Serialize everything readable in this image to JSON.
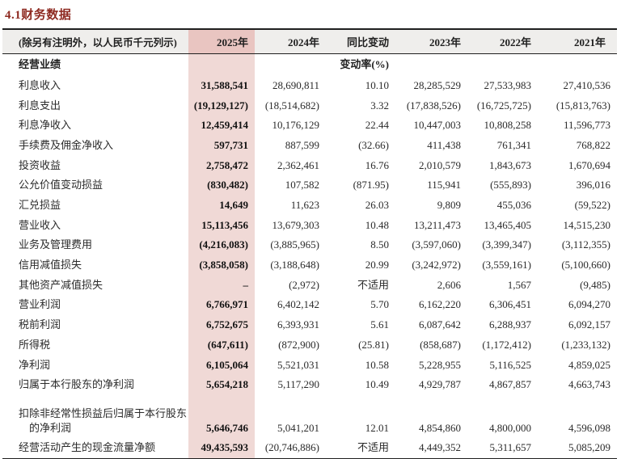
{
  "title": "4.1财务数据",
  "colors": {
    "title_red": "#8e2a21",
    "highlight_header_pink": "#e9c5c1",
    "highlight_column_pink": "#f0d9d6",
    "header_row_gray": "#efeeec",
    "rule_black": "#1f1f1f"
  },
  "table": {
    "note": "(除另有注明外，以人民币千元列示)",
    "columns": [
      "2025年",
      "2024年",
      "同比变动",
      "2023年",
      "2022年",
      "2021年"
    ],
    "section_label": "经营业绩",
    "change_unit_label": "变动率(%)",
    "rows": [
      {
        "label": "利息收入",
        "values": [
          "31,588,541",
          "28,690,811",
          "10.10",
          "28,285,529",
          "27,533,983",
          "27,410,536"
        ]
      },
      {
        "label": "利息支出",
        "values": [
          "(19,129,127)",
          "(18,514,682)",
          "3.32",
          "(17,838,526)",
          "(16,725,725)",
          "(15,813,763)"
        ]
      },
      {
        "label": "利息净收入",
        "values": [
          "12,459,414",
          "10,176,129",
          "22.44",
          "10,447,003",
          "10,808,258",
          "11,596,773"
        ]
      },
      {
        "label": "手续费及佣金净收入",
        "values": [
          "597,731",
          "887,599",
          "(32.66)",
          "411,438",
          "761,341",
          "768,822"
        ]
      },
      {
        "label": "投资收益",
        "values": [
          "2,758,472",
          "2,362,461",
          "16.76",
          "2,010,579",
          "1,843,673",
          "1,670,694"
        ]
      },
      {
        "label": "公允价值变动损益",
        "values": [
          "(830,482)",
          "107,582",
          "(871.95)",
          "115,941",
          "(555,893)",
          "396,016"
        ]
      },
      {
        "label": "汇兑损益",
        "values": [
          "14,649",
          "11,623",
          "26.03",
          "9,809",
          "455,036",
          "(59,522)"
        ]
      },
      {
        "label": "营业收入",
        "values": [
          "15,113,456",
          "13,679,303",
          "10.48",
          "13,211,473",
          "13,465,405",
          "14,515,230"
        ]
      },
      {
        "label": "业务及管理费用",
        "values": [
          "(4,216,083)",
          "(3,885,965)",
          "8.50",
          "(3,597,060)",
          "(3,399,347)",
          "(3,112,355)"
        ]
      },
      {
        "label": "信用减值损失",
        "values": [
          "(3,858,058)",
          "(3,188,648)",
          "20.99",
          "(3,242,972)",
          "(3,559,161)",
          "(5,100,660)"
        ]
      },
      {
        "label": "其他资产减值损失",
        "values": [
          "–",
          "(2,972)",
          "不适用",
          "2,606",
          "1,567",
          "(9,485)"
        ]
      },
      {
        "label": "营业利润",
        "values": [
          "6,766,971",
          "6,402,142",
          "5.70",
          "6,162,220",
          "6,306,451",
          "6,094,270"
        ]
      },
      {
        "label": "税前利润",
        "values": [
          "6,752,675",
          "6,393,931",
          "5.61",
          "6,087,642",
          "6,288,937",
          "6,092,157"
        ]
      },
      {
        "label": "所得税",
        "values": [
          "(647,611)",
          "(872,900)",
          "(25.81)",
          "(858,687)",
          "(1,172,412)",
          "(1,233,132)"
        ]
      },
      {
        "label": "净利润",
        "values": [
          "6,105,064",
          "5,521,031",
          "10.58",
          "5,228,955",
          "5,116,525",
          "4,859,025"
        ]
      },
      {
        "label": "归属于本行股东的净利润",
        "values": [
          "5,654,218",
          "5,117,290",
          "10.49",
          "4,929,787",
          "4,867,857",
          "4,663,743"
        ]
      },
      {
        "label": "扣除非经常性损益后归属于本行股东",
        "label2": "的净利润",
        "values": [
          "5,646,746",
          "5,041,201",
          "12.01",
          "4,854,860",
          "4,800,000",
          "4,596,098"
        ]
      },
      {
        "label": "经营活动产生的现金流量净额",
        "values": [
          "49,435,593",
          "(20,746,886)",
          "不适用",
          "4,449,352",
          "5,311,657",
          "5,085,209"
        ]
      }
    ]
  }
}
